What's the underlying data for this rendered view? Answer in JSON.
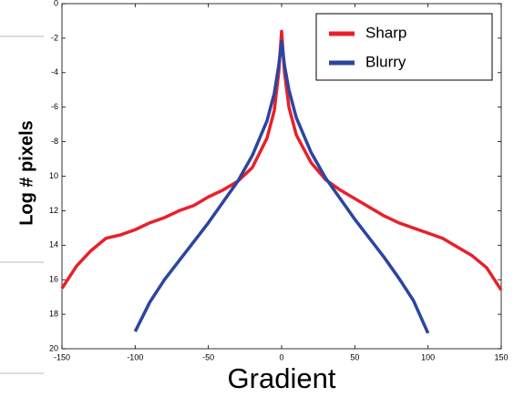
{
  "chart_data": {
    "type": "line",
    "xlabel": "Gradient",
    "ylabel": "Log # pixels",
    "x": [
      -150,
      -140,
      -130,
      -120,
      -110,
      -100,
      -90,
      -80,
      -70,
      -60,
      -50,
      -40,
      -30,
      -20,
      -10,
      -5,
      -2,
      0,
      2,
      5,
      10,
      20,
      30,
      40,
      50,
      60,
      70,
      80,
      90,
      100,
      110,
      120,
      130,
      140,
      150
    ],
    "series": [
      {
        "name": "Sharp",
        "color": "#e8202a",
        "values": [
          -16.5,
          -15.2,
          -14.3,
          -13.6,
          -13.4,
          -13.1,
          -12.7,
          -12.4,
          -12.0,
          -11.7,
          -11.2,
          -10.8,
          -10.3,
          -9.5,
          -7.8,
          -6.2,
          -4.0,
          -1.6,
          -4.0,
          -6.0,
          -7.6,
          -9.2,
          -10.2,
          -10.8,
          -11.3,
          -11.8,
          -12.3,
          -12.7,
          -13.0,
          -13.3,
          -13.6,
          -14.1,
          -14.6,
          -15.3,
          -16.6
        ]
      },
      {
        "name": "Blurry",
        "color": "#2b45a0",
        "values": [
          null,
          null,
          null,
          null,
          null,
          -19.0,
          -17.3,
          -16.0,
          -14.9,
          -13.8,
          -12.7,
          -11.5,
          -10.3,
          -8.8,
          -6.8,
          -5.2,
          -3.6,
          -2.2,
          -3.6,
          -5.0,
          -6.6,
          -8.6,
          -10.1,
          -11.3,
          -12.5,
          -13.6,
          -14.7,
          -15.9,
          -17.2,
          -19.1,
          null,
          null,
          null,
          null,
          null
        ]
      }
    ],
    "xlim": [
      -150,
      150
    ],
    "xticks": [
      -150,
      -100,
      -50,
      0,
      50,
      100,
      150
    ],
    "ylim": [
      -20,
      0
    ],
    "yticks": [
      0,
      -2,
      -4,
      -6,
      -8,
      {
        "value": -10,
        "label": "10"
      },
      {
        "value": -12,
        "label": "12"
      },
      {
        "value": -14,
        "label": "14"
      },
      {
        "value": -16,
        "label": "16"
      },
      {
        "value": -18,
        "label": "18"
      },
      {
        "value": -20,
        "label": "20"
      }
    ],
    "legend": "upper right",
    "grid": false
  }
}
